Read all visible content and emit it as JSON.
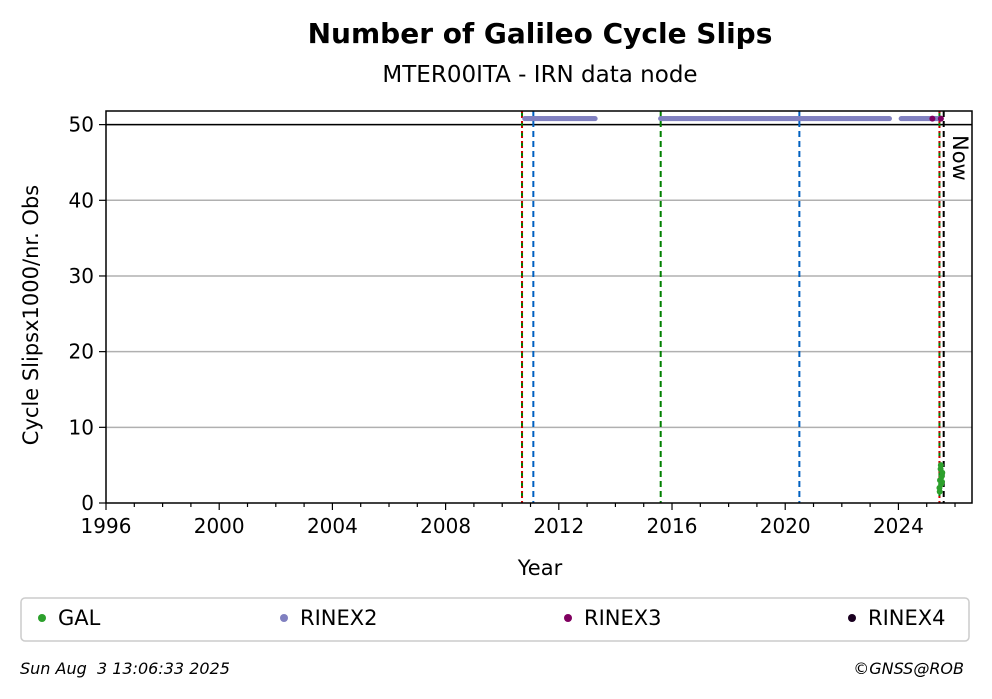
{
  "chart_data": {
    "type": "scatter",
    "title": "Number of Galileo Cycle Slips",
    "subtitle": "MTER00ITA - IRN data node",
    "xlabel": "Year",
    "ylabel": "Cycle Slipsx1000/nr. Obs",
    "xlim": [
      1996,
      2026.6
    ],
    "ylim": [
      0,
      51.8
    ],
    "xticks": [
      1996,
      2000,
      2004,
      2008,
      2012,
      2016,
      2020,
      2024
    ],
    "yticks": [
      0,
      10,
      20,
      30,
      40,
      50
    ],
    "grid": "horizontal",
    "cap_line": 50,
    "now_label": "Now",
    "now_x": 2025.6,
    "vertical_lines": [
      {
        "x": 2010.7,
        "color": "#008000",
        "style": "dashed"
      },
      {
        "x": 2010.7,
        "color": "#cc0000",
        "style": "dotted"
      },
      {
        "x": 2011.1,
        "color": "#0060c0",
        "style": "dashed"
      },
      {
        "x": 2015.6,
        "color": "#008000",
        "style": "dashed"
      },
      {
        "x": 2020.5,
        "color": "#0060c0",
        "style": "dashed"
      },
      {
        "x": 2025.45,
        "color": "#008000",
        "style": "dashed"
      },
      {
        "x": 2025.45,
        "color": "#cc0000",
        "style": "dotted"
      },
      {
        "x": 2025.6,
        "color": "#000000",
        "style": "dashed"
      }
    ],
    "series": [
      {
        "name": "GAL",
        "color": "#2ca02c",
        "x": [
          2025.45,
          2025.47,
          2025.49,
          2025.51,
          2025.53,
          2025.55,
          2025.46,
          2025.5,
          2025.54
        ],
        "y": [
          2.0,
          3.0,
          4.5,
          2.5,
          3.5,
          4.0,
          1.5,
          5.0,
          2.8
        ]
      },
      {
        "name": "RINEX2",
        "color": "#8080c0",
        "segments": [
          [
            2010.8,
            2013.3
          ],
          [
            2015.6,
            2023.7
          ],
          [
            2024.1,
            2025.5
          ]
        ],
        "y": 50.8
      },
      {
        "name": "RINEX3",
        "color": "#800060",
        "x": [
          2025.2,
          2025.5
        ],
        "y": [
          50.8,
          50.8
        ]
      },
      {
        "name": "RINEX4",
        "color": "#1a0020",
        "x": [],
        "y": []
      }
    ],
    "legend_position": "bottom"
  },
  "footer": {
    "timestamp": "Sun Aug  3 13:06:33 2025",
    "credit": "©GNSS@ROB"
  }
}
